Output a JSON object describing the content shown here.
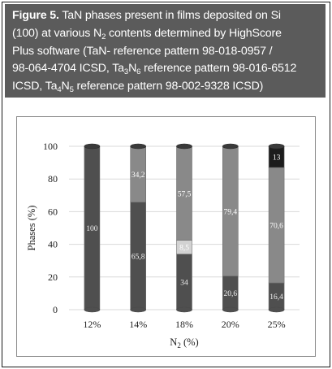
{
  "caption": {
    "figure_label": "Figure 5.",
    "text_line1": " TaN phases present in films deposited on Si",
    "text_line2a": "(100) at various N",
    "text_line2_sub": "2",
    "text_line2b": " contents determined by HighScore",
    "text_line3": "Plus software (TaN- reference pattern 98-018-0957 /",
    "text_line4a": "98-064-4704 ICSD, Ta",
    "text_line4_sub1": "3",
    "text_line4b": "N",
    "text_line4_sub2": "6",
    "text_line4c": " reference pattern 98-016-6512",
    "text_line5a": "ICSD, Ta",
    "text_line5_sub1": "4",
    "text_line5b": "N",
    "text_line5_sub2": "5",
    "text_line5c": " reference pattern 98-002-9328 ICSD)"
  },
  "chart_data": {
    "type": "bar",
    "stacked": true,
    "categories": [
      "12%",
      "14%",
      "18%",
      "20%",
      "25%"
    ],
    "series": [
      {
        "name": "",
        "color": "#4f4f4f",
        "values": [
          100,
          65.8,
          34,
          20.6,
          16.4
        ],
        "labels": [
          "100",
          "65,8",
          "34",
          "20,6",
          "16,4"
        ],
        "label_color": "#f2f2f2"
      },
      {
        "name": "",
        "color": "#d2d2d2",
        "values": [
          0,
          0,
          8.5,
          0,
          0
        ],
        "labels": [
          "",
          "",
          "8,5",
          "",
          ""
        ],
        "label_color": "#ffffff"
      },
      {
        "name": "",
        "color": "#898989",
        "values": [
          0,
          34.2,
          57.5,
          79.4,
          70.6
        ],
        "labels": [
          "",
          "34,2",
          "57,5",
          "79,4",
          "70,6"
        ],
        "label_color": "#ffffff"
      },
      {
        "name": "",
        "color": "#1c1c1c",
        "values": [
          0,
          0,
          0,
          0,
          13
        ],
        "labels": [
          "",
          "",
          "",
          "",
          "13"
        ],
        "label_color": "#ffffff"
      }
    ],
    "ylabel": "Phases (%)",
    "xlabel": "N",
    "xlabel_sub": "2",
    "xlabel_suffix": " (%)",
    "ylim": [
      0,
      100
    ],
    "yticks": [
      0,
      20,
      40,
      60,
      80,
      100
    ],
    "grid": true
  }
}
